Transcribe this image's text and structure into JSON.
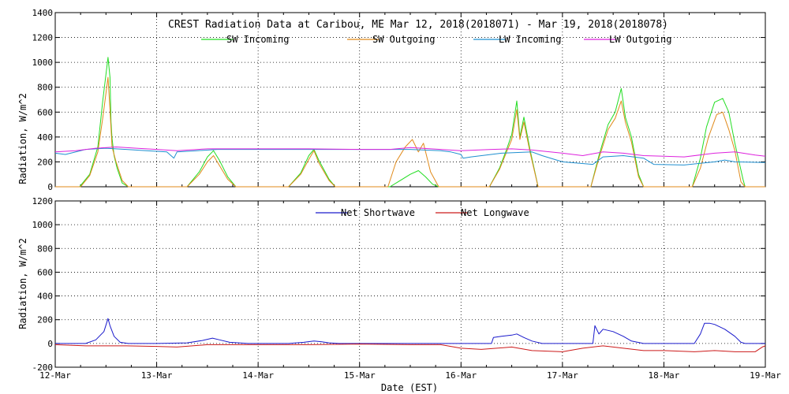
{
  "chart_data": [
    {
      "type": "line",
      "title": "CREST Radiation Data at Caribou, ME   Mar 12, 2018(2018071) - Mar 19, 2018(2018078)",
      "ylabel": "Radiation, W/m^2",
      "xlabel": "",
      "ylim": [
        0,
        1400
      ],
      "yticks": [
        0,
        200,
        400,
        600,
        800,
        1000,
        1200,
        1400
      ],
      "xlim": [
        "2018-03-12",
        "2018-03-19"
      ],
      "xticks": [
        "12-Mar",
        "13-Mar",
        "14-Mar",
        "15-Mar",
        "16-Mar",
        "17-Mar",
        "18-Mar",
        "19-Mar"
      ],
      "grid": true,
      "legend": "top",
      "series": [
        {
          "name": "SW Incoming",
          "color": "#22dd22",
          "x": [
            12.0,
            12.24,
            12.34,
            12.42,
            12.47,
            12.52,
            12.54,
            12.55,
            12.56,
            12.58,
            12.61,
            12.66,
            12.72,
            12.76,
            13.0,
            13.3,
            13.42,
            13.5,
            13.56,
            13.62,
            13.7,
            13.78,
            14.0,
            14.3,
            14.42,
            14.5,
            14.55,
            14.6,
            14.7,
            14.76,
            15.0,
            15.3,
            15.38,
            15.5,
            15.58,
            15.65,
            15.72,
            15.78,
            16.0,
            16.28,
            16.38,
            16.45,
            16.5,
            16.55,
            16.58,
            16.62,
            16.68,
            16.76,
            17.0,
            17.28,
            17.36,
            17.45,
            17.52,
            17.58,
            17.62,
            17.68,
            17.75,
            17.8,
            18.0,
            18.28,
            18.36,
            18.42,
            18.5,
            18.58,
            18.64,
            18.7,
            18.78,
            18.8,
            19.0
          ],
          "y": [
            0,
            0,
            100,
            320,
            700,
            1040,
            880,
            520,
            390,
            250,
            150,
            30,
            0,
            0,
            0,
            0,
            120,
            240,
            290,
            210,
            80,
            0,
            0,
            0,
            110,
            250,
            300,
            210,
            60,
            0,
            0,
            0,
            40,
            100,
            130,
            80,
            20,
            0,
            0,
            0,
            150,
            300,
            420,
            690,
            400,
            560,
            300,
            0,
            0,
            0,
            250,
            500,
            600,
            790,
            560,
            400,
            100,
            0,
            0,
            0,
            230,
            480,
            680,
            710,
            600,
            350,
            60,
            0,
            0
          ]
        },
        {
          "name": "SW Outgoing",
          "color": "#e08a1a",
          "x": [
            12.0,
            12.25,
            12.34,
            12.42,
            12.47,
            12.52,
            12.54,
            12.56,
            12.6,
            12.66,
            12.72,
            12.76,
            13.0,
            13.3,
            13.42,
            13.5,
            13.56,
            13.62,
            13.7,
            13.78,
            14.0,
            14.3,
            14.42,
            14.5,
            14.55,
            14.6,
            14.7,
            14.76,
            15.0,
            15.28,
            15.36,
            15.45,
            15.52,
            15.58,
            15.63,
            15.7,
            15.78,
            16.0,
            16.28,
            16.38,
            16.45,
            16.5,
            16.55,
            16.58,
            16.62,
            16.68,
            16.76,
            17.0,
            17.28,
            17.36,
            17.45,
            17.52,
            17.58,
            17.62,
            17.68,
            17.75,
            17.8,
            18.0,
            18.28,
            18.36,
            18.44,
            18.52,
            18.58,
            18.64,
            18.7,
            18.76,
            18.8,
            19.0
          ],
          "y": [
            0,
            0,
            90,
            280,
            560,
            880,
            620,
            320,
            200,
            50,
            0,
            0,
            0,
            0,
            100,
            200,
            250,
            170,
            60,
            0,
            0,
            0,
            100,
            220,
            290,
            190,
            50,
            0,
            0,
            0,
            200,
            320,
            380,
            280,
            350,
            120,
            0,
            0,
            0,
            140,
            280,
            380,
            620,
            380,
            520,
            280,
            0,
            0,
            0,
            230,
            460,
            550,
            690,
            520,
            360,
            80,
            0,
            0,
            0,
            150,
            400,
            580,
            600,
            460,
            290,
            40,
            0,
            0
          ]
        },
        {
          "name": "LW Incoming",
          "color": "#1f8fd0",
          "x": [
            12.0,
            12.1,
            12.3,
            12.5,
            12.7,
            12.9,
            13.1,
            13.17,
            13.2,
            13.4,
            13.6,
            13.8,
            14.0,
            14.3,
            14.6,
            14.9,
            15.2,
            15.5,
            15.8,
            15.9,
            16.0,
            16.02,
            16.1,
            16.4,
            16.7,
            16.8,
            17.0,
            17.3,
            17.4,
            17.6,
            17.8,
            17.9,
            18.2,
            18.5,
            18.6,
            18.7,
            19.0
          ],
          "y": [
            270,
            260,
            300,
            310,
            300,
            290,
            280,
            230,
            280,
            290,
            300,
            300,
            300,
            300,
            300,
            300,
            300,
            300,
            290,
            280,
            260,
            230,
            240,
            270,
            280,
            250,
            200,
            180,
            240,
            250,
            230,
            180,
            175,
            200,
            215,
            200,
            195
          ]
        },
        {
          "name": "LW Outgoing",
          "color": "#dd22dd",
          "x": [
            12.0,
            12.2,
            12.4,
            12.6,
            12.8,
            13.0,
            13.2,
            13.5,
            14.0,
            14.5,
            15.0,
            15.3,
            15.5,
            15.8,
            16.0,
            16.3,
            16.5,
            16.7,
            17.0,
            17.2,
            17.4,
            17.6,
            17.8,
            18.0,
            18.2,
            18.5,
            18.7,
            18.9,
            19.0
          ],
          "y": [
            280,
            290,
            310,
            320,
            310,
            300,
            290,
            305,
            305,
            305,
            300,
            300,
            315,
            300,
            290,
            300,
            305,
            295,
            270,
            250,
            280,
            270,
            250,
            245,
            240,
            270,
            280,
            255,
            245
          ]
        }
      ]
    },
    {
      "type": "line",
      "title": "",
      "ylabel": "Radiation, W/m^2",
      "xlabel": "Date (EST)",
      "ylim": [
        -200,
        1200
      ],
      "yticks": [
        -200,
        0,
        200,
        400,
        600,
        800,
        1000,
        1200
      ],
      "xlim": [
        "2018-03-12",
        "2018-03-19"
      ],
      "xticks": [
        "12-Mar",
        "13-Mar",
        "14-Mar",
        "15-Mar",
        "16-Mar",
        "17-Mar",
        "18-Mar",
        "19-Mar"
      ],
      "grid": true,
      "legend": "top",
      "series": [
        {
          "name": "Net Shortwave",
          "color": "#1a1acc",
          "x": [
            12.0,
            12.3,
            12.4,
            12.48,
            12.52,
            12.54,
            12.58,
            12.64,
            12.72,
            13.0,
            13.3,
            13.45,
            13.55,
            13.62,
            13.72,
            13.9,
            14.0,
            14.3,
            14.45,
            14.55,
            14.62,
            14.7,
            14.8,
            15.0,
            16.0,
            16.3,
            16.32,
            16.4,
            16.5,
            16.55,
            16.62,
            16.7,
            16.8,
            17.0,
            17.3,
            17.32,
            17.36,
            17.4,
            17.5,
            17.6,
            17.68,
            17.8,
            18.0,
            18.3,
            18.36,
            18.4,
            18.45,
            18.5,
            18.6,
            18.7,
            18.76,
            18.8,
            19.0
          ],
          "y": [
            0,
            0,
            30,
            100,
            210,
            150,
            60,
            10,
            0,
            0,
            5,
            25,
            45,
            30,
            10,
            0,
            0,
            0,
            10,
            20,
            15,
            5,
            0,
            0,
            0,
            0,
            50,
            60,
            70,
            80,
            50,
            20,
            0,
            0,
            0,
            150,
            80,
            120,
            100,
            60,
            20,
            0,
            0,
            0,
            80,
            170,
            170,
            160,
            120,
            60,
            10,
            0,
            0
          ]
        },
        {
          "name": "Net Longwave",
          "color": "#cc1a1a",
          "x": [
            12.0,
            12.3,
            12.5,
            12.7,
            13.0,
            13.2,
            13.5,
            14.0,
            14.5,
            15.0,
            15.5,
            15.8,
            16.0,
            16.2,
            16.5,
            16.7,
            17.0,
            17.2,
            17.4,
            17.6,
            17.8,
            18.0,
            18.3,
            18.5,
            18.7,
            18.9,
            18.97,
            19.0
          ],
          "y": [
            -10,
            -20,
            -20,
            -20,
            -25,
            -30,
            -10,
            -10,
            -10,
            -5,
            -10,
            -10,
            -40,
            -50,
            -30,
            -60,
            -70,
            -40,
            -20,
            -40,
            -60,
            -60,
            -70,
            -60,
            -70,
            -70,
            -30,
            -20
          ]
        }
      ]
    }
  ]
}
